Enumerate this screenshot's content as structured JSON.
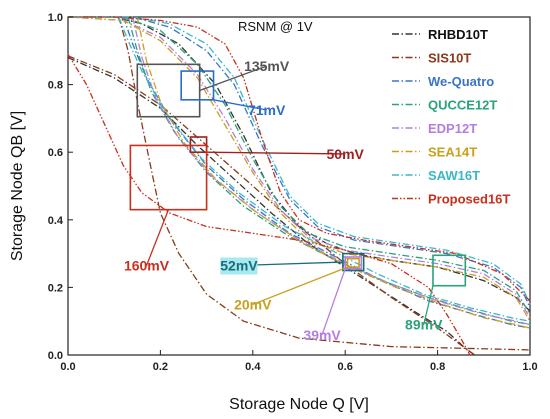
{
  "chart_data": {
    "type": "line",
    "title": "RSNM @ 1V",
    "xlabel": "Storage Node Q [V]",
    "ylabel": "Storage Node QB [V]",
    "xlim": [
      0,
      1
    ],
    "ylim": [
      0,
      1
    ],
    "xticks": [
      "0.0",
      "0.2",
      "0.4",
      "0.6",
      "0.8",
      "1.0"
    ],
    "yticks": [
      "0.0",
      "0.2",
      "0.4",
      "0.6",
      "0.8",
      "1.0"
    ],
    "legend_position": "right",
    "series": [
      {
        "name": "RHBD10T",
        "color": "#333333",
        "a": [
          [
            0.0,
            1.0
          ],
          [
            0.1,
            1.0
          ],
          [
            0.16,
            0.98
          ],
          [
            0.24,
            0.92
          ],
          [
            0.32,
            0.8
          ],
          [
            0.38,
            0.65
          ],
          [
            0.44,
            0.48
          ],
          [
            0.5,
            0.38
          ],
          [
            0.56,
            0.33
          ],
          [
            0.62,
            0.3
          ],
          [
            0.7,
            0.28
          ],
          [
            0.8,
            0.26
          ],
          [
            0.9,
            0.22
          ],
          [
            0.97,
            0.17
          ],
          [
            1.0,
            0.13
          ]
        ],
        "b": [
          [
            0.0,
            0.88
          ],
          [
            0.1,
            0.82
          ],
          [
            0.2,
            0.73
          ],
          [
            0.28,
            0.62
          ],
          [
            0.36,
            0.52
          ],
          [
            0.44,
            0.42
          ],
          [
            0.52,
            0.33
          ],
          [
            0.6,
            0.26
          ],
          [
            0.68,
            0.19
          ],
          [
            0.76,
            0.12
          ],
          [
            0.82,
            0.07
          ],
          [
            0.86,
            0.02
          ],
          [
            0.88,
            0.0
          ]
        ]
      },
      {
        "name": "SIS10T",
        "color": "#8a3a1a",
        "a": [
          [
            0.0,
            0.885
          ],
          [
            0.1,
            0.83
          ],
          [
            0.2,
            0.74
          ],
          [
            0.3,
            0.62
          ],
          [
            0.4,
            0.5
          ],
          [
            0.5,
            0.38
          ],
          [
            0.6,
            0.27
          ],
          [
            0.7,
            0.17
          ],
          [
            0.8,
            0.08
          ],
          [
            0.88,
            0.0
          ]
        ],
        "b": [
          [
            0.11,
            1.0
          ],
          [
            0.13,
            0.9
          ],
          [
            0.15,
            0.75
          ],
          [
            0.18,
            0.55
          ],
          [
            0.2,
            0.42
          ],
          [
            0.24,
            0.3
          ],
          [
            0.3,
            0.18
          ],
          [
            0.38,
            0.1
          ],
          [
            0.5,
            0.05
          ],
          [
            0.7,
            0.025
          ],
          [
            1.0,
            0.015
          ]
        ]
      },
      {
        "name": "We-Quatro",
        "color": "#3a74c8",
        "a": [
          [
            0.0,
            1.0
          ],
          [
            0.14,
            1.0
          ],
          [
            0.22,
            0.97
          ],
          [
            0.3,
            0.9
          ],
          [
            0.36,
            0.8
          ],
          [
            0.42,
            0.62
          ],
          [
            0.48,
            0.46
          ],
          [
            0.54,
            0.38
          ],
          [
            0.62,
            0.34
          ],
          [
            0.72,
            0.32
          ],
          [
            0.82,
            0.3
          ],
          [
            0.92,
            0.26
          ],
          [
            0.98,
            0.2
          ],
          [
            1.0,
            0.14
          ]
        ],
        "b": [
          [
            0.12,
            1.0
          ],
          [
            0.14,
            0.92
          ],
          [
            0.17,
            0.82
          ],
          [
            0.22,
            0.7
          ],
          [
            0.3,
            0.56
          ],
          [
            0.38,
            0.46
          ],
          [
            0.48,
            0.36
          ],
          [
            0.58,
            0.29
          ],
          [
            0.68,
            0.22
          ],
          [
            0.78,
            0.16
          ],
          [
            0.88,
            0.12
          ],
          [
            0.96,
            0.09
          ],
          [
            1.0,
            0.08
          ]
        ]
      },
      {
        "name": "QUCCE12T",
        "color": "#2aa37a",
        "a": [
          [
            0.0,
            1.0
          ],
          [
            0.12,
            1.0
          ],
          [
            0.2,
            0.96
          ],
          [
            0.28,
            0.86
          ],
          [
            0.34,
            0.74
          ],
          [
            0.4,
            0.58
          ],
          [
            0.46,
            0.44
          ],
          [
            0.52,
            0.36
          ],
          [
            0.6,
            0.32
          ],
          [
            0.7,
            0.3
          ],
          [
            0.8,
            0.28
          ],
          [
            0.9,
            0.25
          ],
          [
            0.97,
            0.19
          ],
          [
            1.0,
            0.12
          ]
        ],
        "b": [
          [
            0.13,
            1.0
          ],
          [
            0.15,
            0.9
          ],
          [
            0.18,
            0.78
          ],
          [
            0.23,
            0.66
          ],
          [
            0.3,
            0.54
          ],
          [
            0.38,
            0.44
          ],
          [
            0.48,
            0.35
          ],
          [
            0.58,
            0.28
          ],
          [
            0.68,
            0.22
          ],
          [
            0.78,
            0.17
          ],
          [
            0.88,
            0.13
          ],
          [
            0.96,
            0.1
          ],
          [
            1.0,
            0.09
          ]
        ]
      },
      {
        "name": "EDP12T",
        "color": "#b47ee0",
        "a": [
          [
            0.0,
            1.0
          ],
          [
            0.12,
            0.99
          ],
          [
            0.2,
            0.94
          ],
          [
            0.28,
            0.83
          ],
          [
            0.34,
            0.7
          ],
          [
            0.4,
            0.55
          ],
          [
            0.46,
            0.43
          ],
          [
            0.52,
            0.35
          ],
          [
            0.6,
            0.31
          ],
          [
            0.7,
            0.29
          ],
          [
            0.8,
            0.27
          ],
          [
            0.9,
            0.24
          ],
          [
            0.97,
            0.18
          ],
          [
            1.0,
            0.11
          ]
        ],
        "b": [
          [
            0.14,
            1.0
          ],
          [
            0.16,
            0.88
          ],
          [
            0.19,
            0.76
          ],
          [
            0.24,
            0.64
          ],
          [
            0.31,
            0.53
          ],
          [
            0.4,
            0.43
          ],
          [
            0.5,
            0.34
          ],
          [
            0.6,
            0.27
          ],
          [
            0.7,
            0.21
          ],
          [
            0.8,
            0.16
          ],
          [
            0.9,
            0.12
          ],
          [
            0.97,
            0.1
          ],
          [
            1.0,
            0.09
          ]
        ]
      },
      {
        "name": "SEA14T",
        "color": "#c8a01e",
        "a": [
          [
            0.0,
            1.0
          ],
          [
            0.12,
            0.99
          ],
          [
            0.2,
            0.93
          ],
          [
            0.28,
            0.82
          ],
          [
            0.34,
            0.68
          ],
          [
            0.4,
            0.54
          ],
          [
            0.46,
            0.42
          ],
          [
            0.52,
            0.34
          ],
          [
            0.6,
            0.3
          ],
          [
            0.7,
            0.28
          ],
          [
            0.8,
            0.26
          ],
          [
            0.9,
            0.23
          ],
          [
            0.97,
            0.17
          ],
          [
            1.0,
            0.1
          ]
        ],
        "b": [
          [
            0.15,
            1.0
          ],
          [
            0.17,
            0.87
          ],
          [
            0.2,
            0.75
          ],
          [
            0.25,
            0.63
          ],
          [
            0.32,
            0.52
          ],
          [
            0.41,
            0.42
          ],
          [
            0.51,
            0.33
          ],
          [
            0.61,
            0.26
          ],
          [
            0.71,
            0.2
          ],
          [
            0.81,
            0.15
          ],
          [
            0.9,
            0.11
          ],
          [
            0.97,
            0.09
          ],
          [
            1.0,
            0.08
          ]
        ]
      },
      {
        "name": "SAW16T",
        "color": "#3bb8c8",
        "a": [
          [
            0.0,
            1.0
          ],
          [
            0.14,
            1.0
          ],
          [
            0.22,
            0.98
          ],
          [
            0.3,
            0.92
          ],
          [
            0.36,
            0.82
          ],
          [
            0.42,
            0.64
          ],
          [
            0.48,
            0.47
          ],
          [
            0.54,
            0.39
          ],
          [
            0.62,
            0.35
          ],
          [
            0.72,
            0.33
          ],
          [
            0.82,
            0.31
          ],
          [
            0.92,
            0.27
          ],
          [
            0.98,
            0.21
          ],
          [
            1.0,
            0.15
          ]
        ],
        "b": [
          [
            0.11,
            1.0
          ],
          [
            0.13,
            0.93
          ],
          [
            0.16,
            0.84
          ],
          [
            0.21,
            0.72
          ],
          [
            0.29,
            0.58
          ],
          [
            0.37,
            0.48
          ],
          [
            0.47,
            0.38
          ],
          [
            0.57,
            0.31
          ],
          [
            0.67,
            0.24
          ],
          [
            0.77,
            0.18
          ],
          [
            0.87,
            0.14
          ],
          [
            0.96,
            0.11
          ],
          [
            1.0,
            0.1
          ]
        ]
      },
      {
        "name": "Proposed16T",
        "color": "#c8301e",
        "a": [
          [
            0.0,
            1.0
          ],
          [
            0.1,
            1.0
          ],
          [
            0.2,
            0.99
          ],
          [
            0.28,
            0.97
          ],
          [
            0.34,
            0.92
          ],
          [
            0.38,
            0.82
          ],
          [
            0.42,
            0.64
          ],
          [
            0.46,
            0.48
          ],
          [
            0.5,
            0.4
          ],
          [
            0.56,
            0.36
          ],
          [
            0.64,
            0.34
          ],
          [
            0.74,
            0.32
          ],
          [
            0.84,
            0.3
          ],
          [
            0.94,
            0.24
          ],
          [
            1.0,
            0.16
          ]
        ],
        "b": [
          [
            0.0,
            0.89
          ],
          [
            0.04,
            0.8
          ],
          [
            0.08,
            0.68
          ],
          [
            0.12,
            0.56
          ],
          [
            0.16,
            0.48
          ],
          [
            0.22,
            0.42
          ],
          [
            0.3,
            0.38
          ],
          [
            0.4,
            0.36
          ],
          [
            0.5,
            0.34
          ],
          [
            0.6,
            0.31
          ],
          [
            0.7,
            0.27
          ],
          [
            0.78,
            0.2
          ],
          [
            0.82,
            0.12
          ],
          [
            0.85,
            0.05
          ],
          [
            0.87,
            0.0
          ]
        ]
      }
    ],
    "boxes": [
      {
        "label": "135mV",
        "color": "#555555",
        "x0": 0.15,
        "y0": 0.705,
        "x1": 0.285,
        "y1": 0.86,
        "label_x": 0.43,
        "label_y": 0.84,
        "label_bg": ""
      },
      {
        "label": "71mV",
        "color": "#2a6cc8",
        "x0": 0.245,
        "y0": 0.755,
        "x1": 0.315,
        "y1": 0.84,
        "label_x": 0.43,
        "label_y": 0.71,
        "label_bg": ""
      },
      {
        "label": "50mV",
        "color": "#a02020",
        "x0": 0.265,
        "y0": 0.6,
        "x1": 0.3,
        "y1": 0.645,
        "label_x": 0.6,
        "label_y": 0.58,
        "label_bg": ""
      },
      {
        "label": "160mV",
        "color": "#c8301e",
        "x0": 0.135,
        "y0": 0.43,
        "x1": 0.3,
        "y1": 0.62,
        "label_x": 0.17,
        "label_y": 0.25,
        "label_bg": ""
      },
      {
        "label": "52mV",
        "color": "#1a6c7a",
        "x0": 0.595,
        "y0": 0.25,
        "x1": 0.64,
        "y1": 0.3,
        "label_x": 0.37,
        "label_y": 0.25,
        "label_bg": "#a8e8f0"
      },
      {
        "label": "20mV",
        "color": "#c8a01e",
        "x0": 0.605,
        "y0": 0.26,
        "x1": 0.63,
        "y1": 0.285,
        "label_x": 0.4,
        "label_y": 0.135,
        "label_bg": ""
      },
      {
        "label": "39mV",
        "color": "#b47ee0",
        "x0": 0.6,
        "y0": 0.255,
        "x1": 0.635,
        "y1": 0.29,
        "label_x": 0.55,
        "label_y": 0.045,
        "label_bg": ""
      },
      {
        "label": "89mV",
        "color": "#2aa37a",
        "x0": 0.79,
        "y0": 0.205,
        "x1": 0.86,
        "y1": 0.295,
        "label_x": 0.77,
        "label_y": 0.075,
        "label_bg": ""
      }
    ]
  }
}
